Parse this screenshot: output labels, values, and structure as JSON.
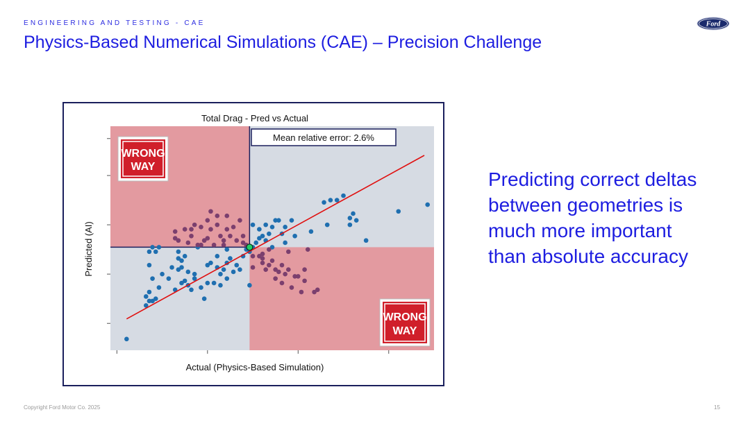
{
  "header": {
    "kicker": "ENGINEERING AND TESTING - CAE",
    "title": "Physics-Based Numerical Simulations (CAE) – Precision Challenge",
    "logo_text": "Ford"
  },
  "note": "Predicting correct deltas between geometries is much more important than absolute accuracy",
  "footer": {
    "copyright": "Copyright Ford Motor Co. 2025",
    "page": "15"
  },
  "colors": {
    "accent": "#1d1de0",
    "frame": "#1a1f5c",
    "plot_bg": "#d6dbe3",
    "wrong_zone": "#e39aa0",
    "point": "#1f6fb0",
    "point_in_wrong_zone": "#7b3f6e",
    "fit_line": "#e01010",
    "origin_marker": "#22cc66"
  },
  "chart_data": {
    "type": "scatter",
    "title": "Total Drag - Pred vs Actual",
    "xlabel": "Actual (Physics-Based Simulation)",
    "ylabel": "Predicted (AI)",
    "annotation": "Mean relative error: 2.6%",
    "sign_text": [
      "WRONG",
      "WAY"
    ],
    "xlim": [
      0,
      100
    ],
    "ylim": [
      0,
      100
    ],
    "grid": false,
    "reference_point": {
      "x": 43,
      "y": 46
    },
    "fit_line": {
      "x": [
        5,
        97
      ],
      "y": [
        14,
        87
      ]
    },
    "points": [
      [
        5,
        5
      ],
      [
        11,
        20
      ],
      [
        12,
        22
      ],
      [
        12,
        26
      ],
      [
        13,
        22
      ],
      [
        14,
        23
      ],
      [
        11,
        24
      ],
      [
        12,
        38
      ],
      [
        13,
        32
      ],
      [
        15,
        28
      ],
      [
        16,
        34
      ],
      [
        14,
        44
      ],
      [
        12,
        44
      ],
      [
        18,
        32
      ],
      [
        20,
        27
      ],
      [
        19,
        37
      ],
      [
        21,
        36
      ],
      [
        21,
        41
      ],
      [
        22,
        40
      ],
      [
        23,
        42
      ],
      [
        21,
        44
      ],
      [
        22,
        30
      ],
      [
        23,
        31
      ],
      [
        24,
        35
      ],
      [
        22,
        37
      ],
      [
        24,
        29
      ],
      [
        25,
        27
      ],
      [
        26,
        32
      ],
      [
        28,
        28
      ],
      [
        30,
        30
      ],
      [
        29,
        23
      ],
      [
        32,
        30
      ],
      [
        34,
        34
      ],
      [
        35,
        36
      ],
      [
        33,
        37
      ],
      [
        36,
        39
      ],
      [
        37,
        41
      ],
      [
        36,
        45
      ],
      [
        33,
        42
      ],
      [
        34,
        29
      ],
      [
        36,
        32
      ],
      [
        38,
        35
      ],
      [
        39,
        38
      ],
      [
        40,
        36
      ],
      [
        41,
        42
      ],
      [
        41,
        48
      ],
      [
        42,
        45
      ],
      [
        43,
        44
      ],
      [
        44,
        46
      ],
      [
        45,
        48
      ],
      [
        46,
        50
      ],
      [
        47,
        51
      ],
      [
        48,
        49
      ],
      [
        49,
        52
      ],
      [
        50,
        46
      ],
      [
        46,
        54
      ],
      [
        48,
        56
      ],
      [
        50,
        55
      ],
      [
        51,
        58
      ],
      [
        52,
        58
      ],
      [
        53,
        52
      ],
      [
        54,
        48
      ],
      [
        55,
        44
      ],
      [
        49,
        45
      ],
      [
        47,
        41
      ],
      [
        44,
        42
      ],
      [
        43,
        29
      ],
      [
        44,
        37
      ],
      [
        47,
        39
      ],
      [
        51,
        36
      ],
      [
        53,
        38
      ],
      [
        55,
        36
      ],
      [
        58,
        33
      ],
      [
        59,
        26
      ],
      [
        60,
        36
      ],
      [
        64,
        27
      ],
      [
        54,
        55
      ],
      [
        56,
        58
      ],
      [
        57,
        51
      ],
      [
        61,
        45
      ],
      [
        62,
        53
      ],
      [
        66,
        66
      ],
      [
        67,
        56
      ],
      [
        68,
        67
      ],
      [
        70,
        67
      ],
      [
        72,
        69
      ],
      [
        74,
        56
      ],
      [
        74,
        59
      ],
      [
        75,
        61
      ],
      [
        76,
        58
      ],
      [
        79,
        49
      ],
      [
        89,
        62
      ],
      [
        98,
        65
      ],
      [
        31,
        39
      ],
      [
        30,
        38
      ],
      [
        26,
        34
      ],
      [
        13,
        46
      ],
      [
        15,
        46
      ],
      [
        20,
        50
      ],
      [
        20,
        53
      ],
      [
        23,
        54
      ],
      [
        25,
        51
      ],
      [
        26,
        56
      ],
      [
        27,
        46
      ],
      [
        28,
        47
      ],
      [
        29,
        49
      ],
      [
        30,
        58
      ],
      [
        30,
        50
      ],
      [
        31,
        54
      ],
      [
        32,
        47
      ],
      [
        33,
        60
      ],
      [
        34,
        51
      ],
      [
        35,
        49
      ],
      [
        36,
        54
      ],
      [
        36,
        60
      ],
      [
        37,
        51
      ],
      [
        38,
        55
      ],
      [
        39,
        49
      ],
      [
        40,
        58
      ],
      [
        41,
        51
      ],
      [
        42,
        47
      ],
      [
        44,
        56
      ],
      [
        31,
        62
      ],
      [
        25,
        54
      ],
      [
        24,
        48
      ],
      [
        28,
        55
      ],
      [
        33,
        56
      ],
      [
        27,
        47
      ],
      [
        21,
        49
      ],
      [
        35,
        47
      ],
      [
        46,
        42
      ],
      [
        49,
        38
      ],
      [
        51,
        32
      ],
      [
        52,
        35
      ],
      [
        53,
        30
      ],
      [
        54,
        34
      ],
      [
        56,
        28
      ],
      [
        57,
        33
      ],
      [
        63,
        26
      ],
      [
        60,
        31
      ],
      [
        48,
        36
      ],
      [
        50,
        40
      ],
      [
        47,
        43
      ]
    ]
  }
}
